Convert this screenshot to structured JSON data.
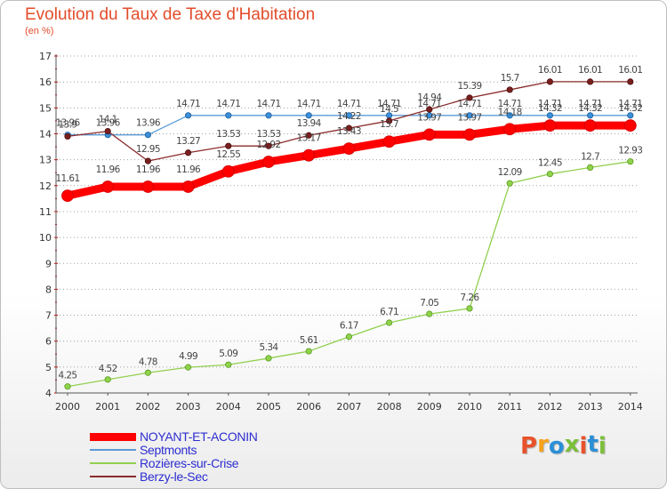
{
  "header": {
    "title": "Evolution du Taux de Taxe d'Habitation",
    "subtitle": "(en %)"
  },
  "chart_data": {
    "type": "line",
    "title": "Evolution du Taux de Taxe d'Habitation",
    "subtitle": "(en %)",
    "xlabel": "",
    "ylabel": "",
    "x": [
      "2000",
      "2001",
      "2002",
      "2003",
      "2004",
      "2005",
      "2006",
      "2007",
      "2008",
      "2009",
      "2010",
      "2011",
      "2012",
      "2013",
      "2014"
    ],
    "ylim": [
      4,
      17
    ],
    "yticks": [
      "4",
      "5",
      "6",
      "7",
      "8",
      "9",
      "10",
      "11",
      "12",
      "13",
      "14",
      "15",
      "16",
      "17"
    ],
    "grid": "horizontal dotted",
    "legend_position": "bottom-left",
    "series": [
      {
        "name": "NOYANT-ET-ACONIN",
        "color": "#ff0000",
        "values": [
          11.61,
          11.96,
          11.96,
          11.96,
          12.55,
          12.92,
          13.17,
          13.43,
          13.7,
          13.97,
          13.97,
          14.18,
          14.32,
          14.32,
          14.32
        ],
        "labels": [
          "11.61",
          "11.96",
          "11.96",
          "11.96",
          "12.55",
          "12.92",
          "13.17",
          "13.43",
          "13.7",
          "13.97",
          "13.97",
          "14.18",
          "14.32",
          "14.32",
          "14.32"
        ]
      },
      {
        "name": "Septmonts",
        "color": "#5b9bd5",
        "values": [
          13.96,
          13.96,
          13.96,
          14.71,
          14.71,
          14.71,
          14.71,
          14.71,
          14.71,
          14.71,
          14.71,
          14.71,
          14.71,
          14.71,
          14.71
        ],
        "labels": [
          "13.96",
          "13.96",
          "13.96",
          "14.71",
          "14.71",
          "14.71",
          "14.71",
          "14.71",
          "14.71",
          "14.71",
          "14.71",
          "14.71",
          "14.71",
          "14.71",
          "14.71"
        ]
      },
      {
        "name": "Rozières-sur-Crise",
        "color": "#92d050",
        "values": [
          4.25,
          4.52,
          4.78,
          4.99,
          5.09,
          5.34,
          5.61,
          6.17,
          6.71,
          7.05,
          7.26,
          12.09,
          12.45,
          12.7,
          12.93
        ],
        "labels": [
          "4.25",
          "4.52",
          "4.78",
          "4.99",
          "5.09",
          "5.34",
          "5.61",
          "6.17",
          "6.71",
          "7.05",
          "7.26",
          "12.09",
          "12.45",
          "12.7",
          "12.93"
        ]
      },
      {
        "name": "Berzy-le-Sec",
        "color": "#8b2b2b",
        "values": [
          13.9,
          14.1,
          12.95,
          13.27,
          13.53,
          13.53,
          13.94,
          14.22,
          14.5,
          14.94,
          15.39,
          15.7,
          16.01,
          16.01,
          16.01
        ],
        "labels": [
          "13.9",
          "14.1",
          "12.95",
          "13.27",
          "13.53",
          "13.53",
          "13.94",
          "14.22",
          "14.5",
          "14.94",
          "15.39",
          "15.7",
          "16.01",
          "16.01",
          "16.01"
        ]
      }
    ]
  },
  "branding": {
    "logo_text": "Proxiti",
    "logo_colors": [
      "#e8522b",
      "#f7a21b",
      "#2a8fd6",
      "#7cbf3a",
      "#e8522b",
      "#2a8fd6",
      "#7cbf3a"
    ]
  }
}
